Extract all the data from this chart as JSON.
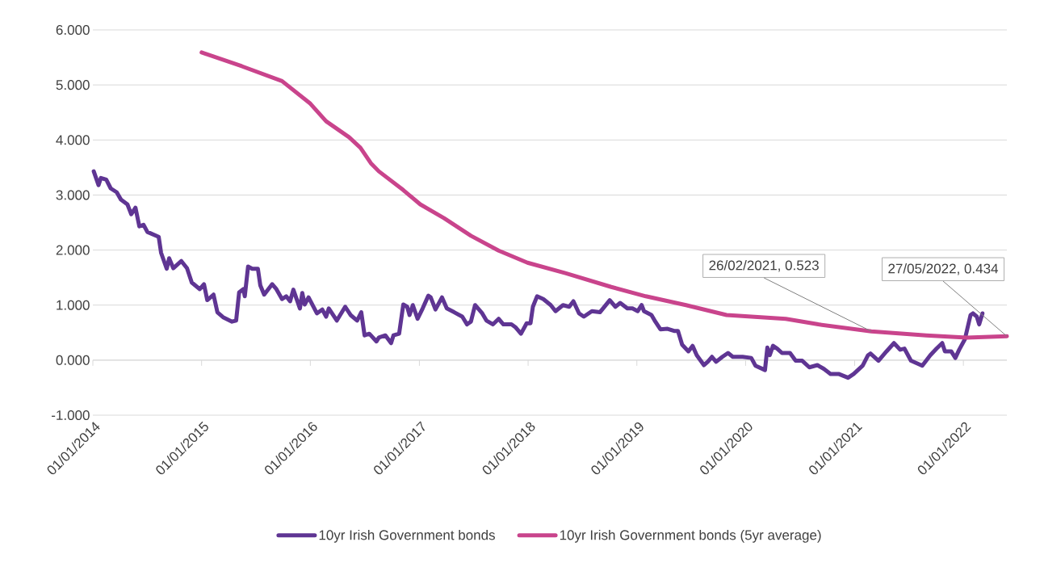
{
  "chart_data": {
    "type": "line",
    "xlim": [
      "2014-01-01",
      "2022-05-27"
    ],
    "ylim": [
      -1,
      6
    ],
    "xticks": [
      {
        "value": "2014-01-01",
        "label": "01/01/2014"
      },
      {
        "value": "2015-01-01",
        "label": "01/01/2015"
      },
      {
        "value": "2016-01-01",
        "label": "01/01/2016"
      },
      {
        "value": "2017-01-01",
        "label": "01/01/2017"
      },
      {
        "value": "2018-01-01",
        "label": "01/01/2018"
      },
      {
        "value": "2019-01-01",
        "label": "01/01/2019"
      },
      {
        "value": "2020-01-01",
        "label": "01/01/2020"
      },
      {
        "value": "2021-01-01",
        "label": "01/01/2021"
      },
      {
        "value": "2022-01-01",
        "label": "01/01/2022"
      }
    ],
    "yticks": [
      {
        "value": -1,
        "label": "-1.000"
      },
      {
        "value": 0,
        "label": "0.000"
      },
      {
        "value": 1,
        "label": "1.000"
      },
      {
        "value": 2,
        "label": "2.000"
      },
      {
        "value": 3,
        "label": "3.000"
      },
      {
        "value": 4,
        "label": "4.000"
      },
      {
        "value": 5,
        "label": "5.000"
      },
      {
        "value": 6,
        "label": "6.000"
      }
    ],
    "grid": "y",
    "legend": "bottom",
    "series": [
      {
        "name": "10yr Irish Government bonds",
        "color": "#5f3593",
        "x": [
          "2014-01-04",
          "2014-01-20",
          "2014-01-28",
          "2014-02-15",
          "2014-03-02",
          "2014-03-22",
          "2014-04-05",
          "2014-04-27",
          "2014-05-10",
          "2014-05-24",
          "2014-06-06",
          "2014-06-20",
          "2014-07-03",
          "2014-08-10",
          "2014-08-18",
          "2014-09-06",
          "2014-09-14",
          "2014-09-28",
          "2014-10-25",
          "2014-11-13",
          "2014-11-29",
          "2014-12-26",
          "2015-01-09",
          "2015-01-20",
          "2015-02-10",
          "2015-02-23",
          "2015-03-14",
          "2015-04-13",
          "2015-04-27",
          "2015-05-07",
          "2015-05-21",
          "2015-05-26",
          "2015-06-06",
          "2015-06-20",
          "2015-07-09",
          "2015-07-17",
          "2015-07-30",
          "2015-08-26",
          "2015-09-09",
          "2015-09-28",
          "2015-10-12",
          "2015-10-25",
          "2015-11-05",
          "2015-11-27",
          "2015-12-05",
          "2015-12-13",
          "2015-12-26",
          "2016-01-23",
          "2016-02-10",
          "2016-02-23",
          "2016-03-03",
          "2016-03-30",
          "2016-04-27",
          "2016-05-15",
          "2016-06-06",
          "2016-06-20",
          "2016-07-01",
          "2016-07-17",
          "2016-08-10",
          "2016-08-18",
          "2016-09-09",
          "2016-09-28",
          "2016-10-06",
          "2016-10-25",
          "2016-11-08",
          "2016-11-21",
          "2016-11-29",
          "2016-12-10",
          "2016-12-26",
          "2017-01-12",
          "2017-01-31",
          "2017-02-08",
          "2017-02-24",
          "2017-03-18",
          "2017-04-03",
          "2017-04-28",
          "2017-05-25",
          "2017-06-10",
          "2017-06-23",
          "2017-07-07",
          "2017-07-31",
          "2017-08-14",
          "2017-09-05",
          "2017-09-24",
          "2017-10-10",
          "2017-11-06",
          "2017-11-19",
          "2017-12-08",
          "2017-12-27",
          "2018-01-09",
          "2018-01-17",
          "2018-01-31",
          "2018-02-21",
          "2018-03-18",
          "2018-04-03",
          "2018-04-28",
          "2018-05-19",
          "2018-06-02",
          "2018-06-21",
          "2018-07-07",
          "2018-08-03",
          "2018-08-30",
          "2018-10-02",
          "2018-10-21",
          "2018-11-06",
          "2018-11-30",
          "2018-12-17",
          "2019-01-04",
          "2019-01-17",
          "2019-01-25",
          "2019-02-19",
          "2019-03-04",
          "2019-03-21",
          "2019-04-14",
          "2019-05-06",
          "2019-05-19",
          "2019-06-02",
          "2019-06-23",
          "2019-07-07",
          "2019-07-21",
          "2019-08-14",
          "2019-08-27",
          "2019-09-10",
          "2019-09-24",
          "2019-10-15",
          "2019-11-03",
          "2019-11-19",
          "2019-12-22",
          "2020-01-20",
          "2020-02-03",
          "2020-03-06",
          "2020-03-14",
          "2020-03-22",
          "2020-04-02",
          "2020-04-16",
          "2020-05-02",
          "2020-05-29",
          "2020-06-17",
          "2020-07-09",
          "2020-08-02",
          "2020-08-29",
          "2020-09-20",
          "2020-10-12",
          "2020-11-08",
          "2020-12-10",
          "2020-12-29",
          "2021-01-28",
          "2021-02-15",
          "2021-02-23",
          "2021-03-22",
          "2021-04-18",
          "2021-05-13",
          "2021-06-03",
          "2021-06-17",
          "2021-07-09",
          "2021-08-16",
          "2021-09-12",
          "2021-10-03",
          "2021-10-22",
          "2021-10-31",
          "2021-11-21",
          "2021-12-05",
          "2021-12-18",
          "2022-01-06",
          "2022-01-25",
          "2022-02-02",
          "2022-02-15",
          "2022-02-23",
          "2022-03-06"
        ],
        "values": [
          3.43,
          3.18,
          3.31,
          3.28,
          3.12,
          3.05,
          2.92,
          2.83,
          2.65,
          2.77,
          2.43,
          2.46,
          2.33,
          2.24,
          1.95,
          1.66,
          1.85,
          1.67,
          1.8,
          1.67,
          1.41,
          1.29,
          1.38,
          1.09,
          1.19,
          0.87,
          0.78,
          0.7,
          0.72,
          1.23,
          1.29,
          1.16,
          1.7,
          1.66,
          1.66,
          1.36,
          1.19,
          1.38,
          1.29,
          1.11,
          1.16,
          1.07,
          1.28,
          0.94,
          1.22,
          1.01,
          1.14,
          0.85,
          0.92,
          0.79,
          0.94,
          0.72,
          0.97,
          0.82,
          0.72,
          0.87,
          0.45,
          0.48,
          0.34,
          0.41,
          0.45,
          0.31,
          0.45,
          0.48,
          1.01,
          0.97,
          0.82,
          1.0,
          0.75,
          0.94,
          1.17,
          1.14,
          0.92,
          1.14,
          0.94,
          0.87,
          0.79,
          0.65,
          0.7,
          1.0,
          0.85,
          0.72,
          0.65,
          0.75,
          0.65,
          0.65,
          0.6,
          0.48,
          0.67,
          0.67,
          0.97,
          1.16,
          1.11,
          1.0,
          0.89,
          1.0,
          0.97,
          1.07,
          0.85,
          0.79,
          0.89,
          0.87,
          1.09,
          0.97,
          1.04,
          0.94,
          0.94,
          0.89,
          1.0,
          0.89,
          0.82,
          0.7,
          0.56,
          0.57,
          0.53,
          0.53,
          0.28,
          0.16,
          0.26,
          0.09,
          -0.09,
          -0.03,
          0.06,
          -0.03,
          0.06,
          0.13,
          0.06,
          0.06,
          0.04,
          -0.1,
          -0.18,
          0.23,
          0.09,
          0.26,
          0.21,
          0.13,
          0.13,
          -0.01,
          -0.01,
          -0.13,
          -0.09,
          -0.16,
          -0.25,
          -0.25,
          -0.32,
          -0.25,
          -0.1,
          0.09,
          0.12,
          -0.01,
          0.16,
          0.31,
          0.19,
          0.21,
          -0.01,
          -0.1,
          0.09,
          0.21,
          0.31,
          0.16,
          0.16,
          0.04,
          0.19,
          0.38,
          0.82,
          0.85,
          0.79,
          0.65,
          0.85
        ]
      },
      {
        "name": "10yr Irish Government bonds (5yr average)",
        "color": "#c9448c",
        "x": [
          "2015-01-01",
          "2015-05-16",
          "2015-09-28",
          "2016-01-01",
          "2016-02-23",
          "2016-05-10",
          "2016-06-17",
          "2016-07-22",
          "2016-08-18",
          "2016-11-08",
          "2017-01-04",
          "2017-03-25",
          "2017-06-23",
          "2017-09-24",
          "2017-12-30",
          "2018-05-06",
          "2018-10-07",
          "2019-01-31",
          "2019-06-15",
          "2019-10-29",
          "2020-05-15",
          "2020-09-01",
          "2021-02-26",
          "2021-08-29",
          "2022-01-12",
          "2022-05-27"
        ],
        "values": [
          5.59,
          5.34,
          5.07,
          4.66,
          4.34,
          4.05,
          3.86,
          3.58,
          3.43,
          3.09,
          2.83,
          2.58,
          2.26,
          1.99,
          1.77,
          1.58,
          1.33,
          1.16,
          1.0,
          0.82,
          0.75,
          0.65,
          0.523,
          0.45,
          0.41,
          0.434
        ]
      }
    ],
    "annotations": [
      {
        "text": "26/02/2021, 0.523",
        "x": "2021-02-26",
        "y": 0.523
      },
      {
        "text": "27/05/2022, 0.434",
        "x": "2022-05-27",
        "y": 0.434
      }
    ]
  }
}
